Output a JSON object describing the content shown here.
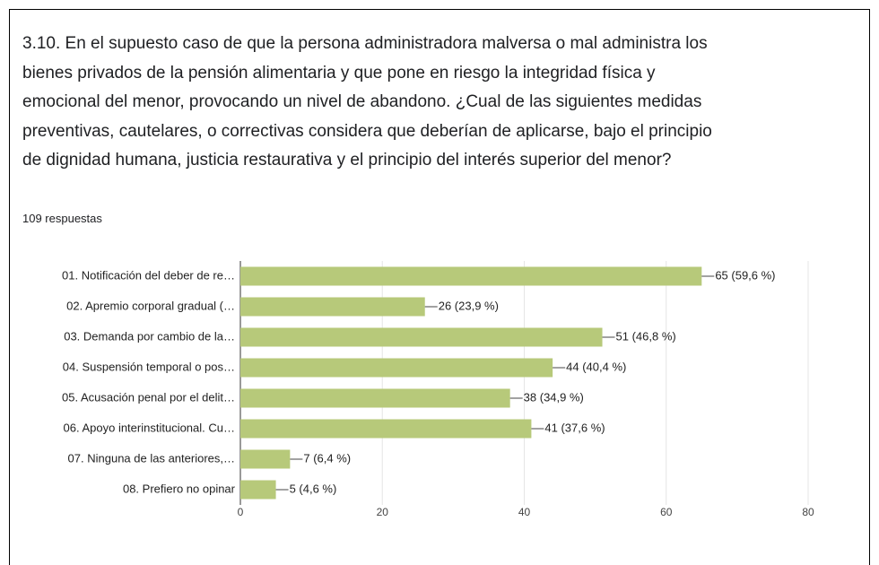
{
  "chart_data": {
    "type": "bar",
    "orientation": "horizontal",
    "title": "3.10. En el supuesto caso de que la persona administradora malversa o mal administra los bienes privados de la pensión alimentaria y que pone en riesgo la integridad física y emocional del menor, provocando un nivel de abandono. ¿Cual de las siguientes medidas preventivas, cautelares, o correctivas considera que deberían de aplicarse, bajo el principio de dignidad humana, justicia restaurativa y el principio del interés superior del menor?",
    "subtitle": "109 respuestas",
    "categories": [
      "01. Notificación del deber de re…",
      "02. Apremio corporal gradual (…",
      "03. Demanda por cambio de la…",
      "04. Suspensión temporal o pos…",
      "05. Acusación penal por el delit…",
      "06. Apoyo interinstitucional. Cu…",
      "07. Ninguna de las anteriores,…",
      "08. Prefiero no opinar"
    ],
    "values": [
      65,
      26,
      51,
      44,
      38,
      41,
      7,
      5
    ],
    "value_labels": [
      "65 (59,6 %)",
      "26 (23,9 %)",
      "51 (46,8 %)",
      "44 (40,4 %)",
      "38 (34,9 %)",
      "41 (37,6 %)",
      "7 (6,4 %)",
      "5 (4,6 %)"
    ],
    "color": "#b7c97a",
    "xlim": [
      0,
      80
    ],
    "xticks": [
      0,
      20,
      40,
      60,
      80
    ],
    "grid": true
  }
}
